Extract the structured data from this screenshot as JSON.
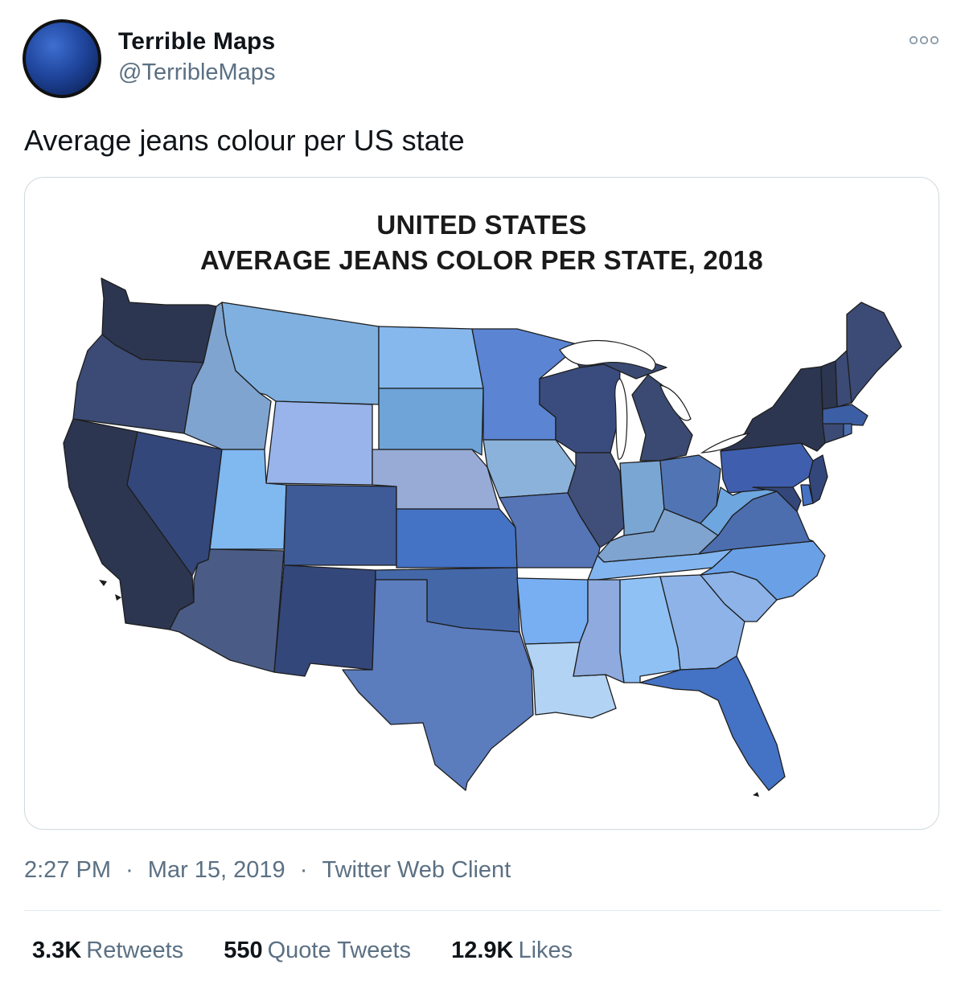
{
  "author": {
    "name": "Terrible Maps",
    "handle": "@TerribleMaps"
  },
  "tweet": {
    "text": "Average jeans colour per US state"
  },
  "media": {
    "title_line1": "UNITED STATES",
    "title_line2": "AVERAGE JEANS COLOR PER STATE, 2018"
  },
  "meta": {
    "time": "2:27 PM",
    "separator": "·",
    "date": "Mar 15, 2019",
    "client": "Twitter Web Client"
  },
  "stats": {
    "retweets_count": "3.3K",
    "retweets_label": "Retweets",
    "quotes_count": "550",
    "quotes_label": "Quote Tweets",
    "likes_count": "12.9K",
    "likes_label": "Likes"
  },
  "icons": {
    "more": "more-options-icon"
  },
  "colors": {
    "text_primary": "#0f1419",
    "text_secondary": "#5b7083",
    "border": "#cfd9de",
    "state_darkest": "#2d3650",
    "state_dark": "#3c4b75",
    "state_medium_dark": "#34477a",
    "state_medium": "#5b7cbd",
    "state_bright": "#4472c4",
    "state_light": "#7fb2e5",
    "state_lightest": "#b2d3f4"
  }
}
